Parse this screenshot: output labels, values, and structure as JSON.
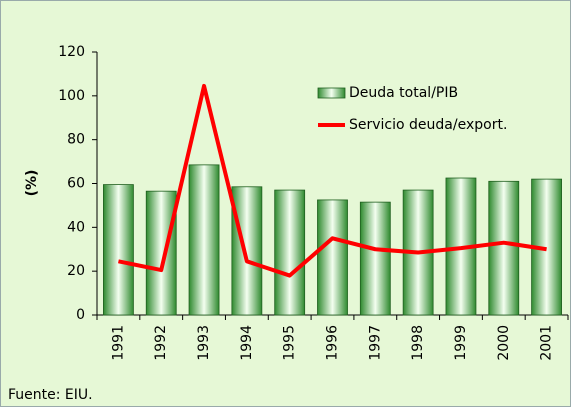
{
  "chart_data": {
    "type": "bar",
    "categories": [
      "1991",
      "1992",
      "1993",
      "1994",
      "1995",
      "1996",
      "1997",
      "1998",
      "1999",
      "2000",
      "2001"
    ],
    "series": [
      {
        "name": "Deuda total/PIB",
        "type": "bar",
        "color": "#2f8a2f",
        "values": [
          59.5,
          56.5,
          68.5,
          58.5,
          57,
          52.5,
          51.5,
          57,
          62.5,
          61,
          62
        ]
      },
      {
        "name": "Servicio deuda/export.",
        "type": "line",
        "color": "#ff0000",
        "values": [
          24.5,
          20.5,
          104.5,
          24.5,
          18,
          35,
          30,
          28.5,
          30.5,
          33,
          30
        ]
      }
    ],
    "ylabel": "(%)",
    "ylim": [
      0,
      120
    ],
    "yticks": [
      0,
      20,
      40,
      60,
      80,
      100,
      120
    ],
    "source": "Fuente: EIU."
  }
}
